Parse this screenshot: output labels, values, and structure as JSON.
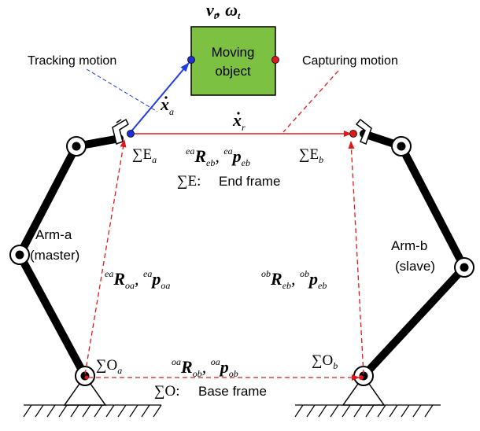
{
  "object": {
    "velocity_label": "v",
    "velocity_sub": "t",
    "omega_label": "ω",
    "omega_sub": "t",
    "box_line1": "Moving",
    "box_line2": "object"
  },
  "labels": {
    "tracking": "Tracking motion",
    "capturing": "Capturing motion",
    "xa": "x",
    "xa_sub": "a",
    "xr": "x",
    "xr_sub": "r",
    "end_frame": "End frame",
    "base_frame": "Base frame",
    "arm_a_line1": "Arm-a",
    "arm_a_line2": "(master)",
    "arm_b_line1": "Arm-b",
    "arm_b_line2": "(slave)"
  },
  "frames": {
    "sigma": "∑",
    "ea_main": "E",
    "ea_sub": "a",
    "eb_main": "E",
    "eb_sub": "b",
    "e_main": "E:",
    "oa_main": "O",
    "oa_sub": "a",
    "ob_main": "O",
    "ob_sub": "b",
    "o_main": "O:"
  },
  "transforms": {
    "top": {
      "sup1": "ea",
      "m1": "R",
      "sub1": "eb",
      "sup2": "ea",
      "m2": "p",
      "sub2": "eb"
    },
    "left": {
      "sup1": "ea",
      "m1": "R",
      "sub1": "oa",
      "sup2": "ea",
      "m2": "p",
      "sub2": "oa"
    },
    "right": {
      "sup1": "ob",
      "m1": "R",
      "sub1": "eb",
      "sup2": "ob",
      "m2": "p",
      "sub2": "eb"
    },
    "bottom": {
      "sup1": "oa",
      "m1": "R",
      "sub1": "ob",
      "sup2": "oa",
      "m2": "p",
      "sub2": "ob"
    }
  },
  "colors": {
    "object_fill": "#7dc142",
    "tracking_arrow": "#1f3de0",
    "capture_arrow": "#e02020",
    "blue_dot": "#1c2fd8",
    "red_dot": "#e01818"
  }
}
